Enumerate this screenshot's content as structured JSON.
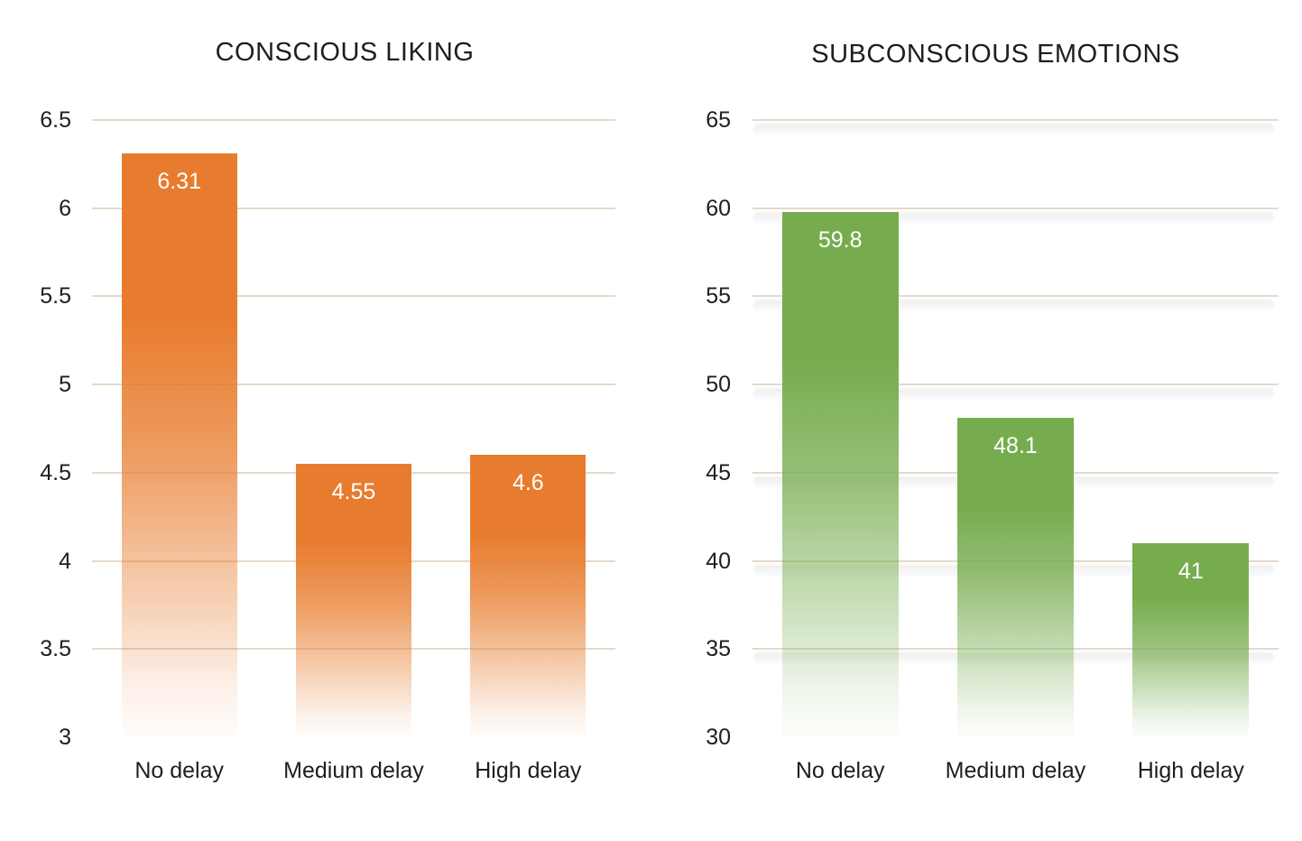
{
  "figure": {
    "background_color": "#ffffff",
    "text_color": "#1e1e1e",
    "gridline_color": "#e7d8c9",
    "gridline_shadow_color": "#efefef"
  },
  "chart_data": [
    {
      "type": "bar",
      "title": "CONSCIOUS LIKING",
      "categories": [
        "No delay",
        "Medium delay",
        "High delay"
      ],
      "values": [
        6.31,
        4.55,
        4.6
      ],
      "value_labels": [
        "6.31",
        "4.55",
        "4.6"
      ],
      "ylim": [
        3,
        6.5
      ],
      "ytick_step": 0.5,
      "yticks": [
        "6.5",
        "6",
        "5.5",
        "5",
        "4.5",
        "4",
        "3.5",
        "3"
      ],
      "xlabel": "",
      "ylabel": "",
      "legend": "none",
      "grid": "horizontal",
      "gridline_shadow": false,
      "bar_color": "#e87c2e",
      "bar_gradient": "fades to white toward bar bottom",
      "value_label_color": "#ffffff"
    },
    {
      "type": "bar",
      "title": "SUBCONSCIOUS EMOTIONS",
      "categories": [
        "No delay",
        "Medium delay",
        "High delay"
      ],
      "values": [
        59.8,
        48.1,
        41
      ],
      "value_labels": [
        "59.8",
        "48.1",
        "41"
      ],
      "ylim": [
        30,
        65
      ],
      "ytick_step": 5,
      "yticks": [
        "65",
        "60",
        "55",
        "50",
        "45",
        "40",
        "35",
        "30"
      ],
      "xlabel": "",
      "ylabel": "",
      "legend": "none",
      "grid": "horizontal",
      "gridline_shadow": true,
      "bar_color": "#76ac4e",
      "bar_gradient": "fades to white toward bar bottom",
      "value_label_color": "#ffffff"
    }
  ]
}
